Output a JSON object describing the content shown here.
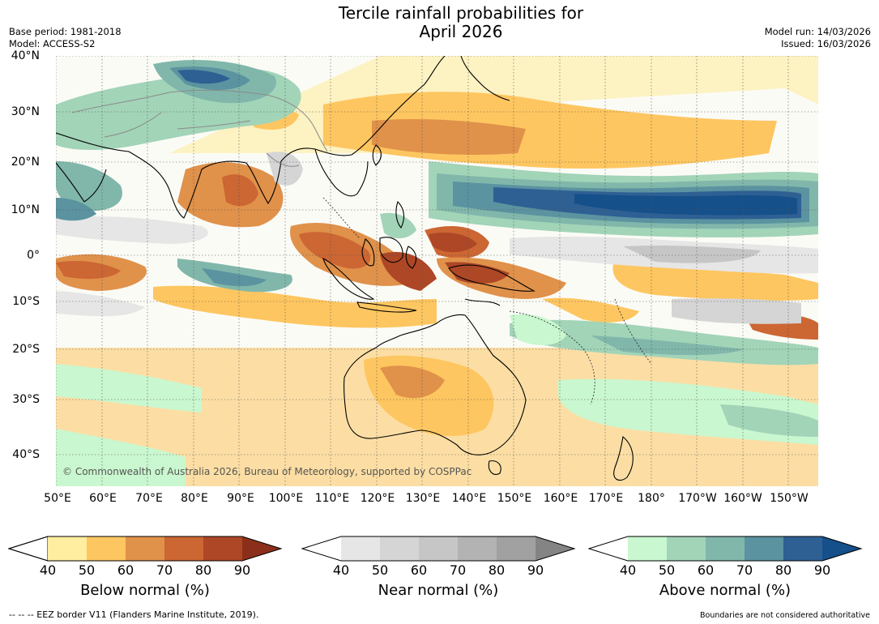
{
  "title": {
    "line1": "Tercile rainfall probabilities for",
    "line2": "April 2026"
  },
  "meta_left": {
    "base_period": "Base period: 1981-2018",
    "model": "Model: ACCESS-S2"
  },
  "meta_right": {
    "model_run": "Model run: 14/03/2026",
    "issued": "Issued: 16/03/2026"
  },
  "copyright": "© Commonwealth of Australia 2026, Bureau of Meteorology, supported by COSPPac",
  "lat_labels": [
    "40°N",
    "30°N",
    "20°N",
    "10°N",
    "0°",
    "10°S",
    "20°S",
    "30°S",
    "40°S"
  ],
  "lon_labels": [
    "50°E",
    "60°E",
    "70°E",
    "80°E",
    "90°E",
    "100°E",
    "110°E",
    "120°E",
    "130°E",
    "140°E",
    "150°E",
    "160°E",
    "170°E",
    "180°",
    "170°W",
    "160°W",
    "150°W"
  ],
  "legends": {
    "below": {
      "label": "Below normal (%)",
      "ticks": [
        "40",
        "50",
        "60",
        "70",
        "80",
        "90"
      ],
      "colors": [
        "#ffeda0",
        "#fec660",
        "#e0914a",
        "#cc6633",
        "#ad4726",
        "#8c2f1a"
      ]
    },
    "near": {
      "label": "Near normal (%)",
      "ticks": [
        "40",
        "50",
        "60",
        "70",
        "80",
        "90"
      ],
      "colors": [
        "#e6e6e6",
        "#d5d5d5",
        "#c6c6c6",
        "#b3b3b3",
        "#a1a1a1",
        "#848484"
      ]
    },
    "above": {
      "label": "Above normal (%)",
      "ticks": [
        "40",
        "50",
        "60",
        "70",
        "80",
        "90"
      ],
      "colors": [
        "#c9f7cf",
        "#a2d4b8",
        "#81b7ab",
        "#5b93a0",
        "#2e6094",
        "#15508a"
      ]
    }
  },
  "footer": {
    "eez": "--  --  -- EEZ border V11 (Flanders Marine Institute, 2019).",
    "disclaimer": "Boundaries are not considered authoritative"
  }
}
